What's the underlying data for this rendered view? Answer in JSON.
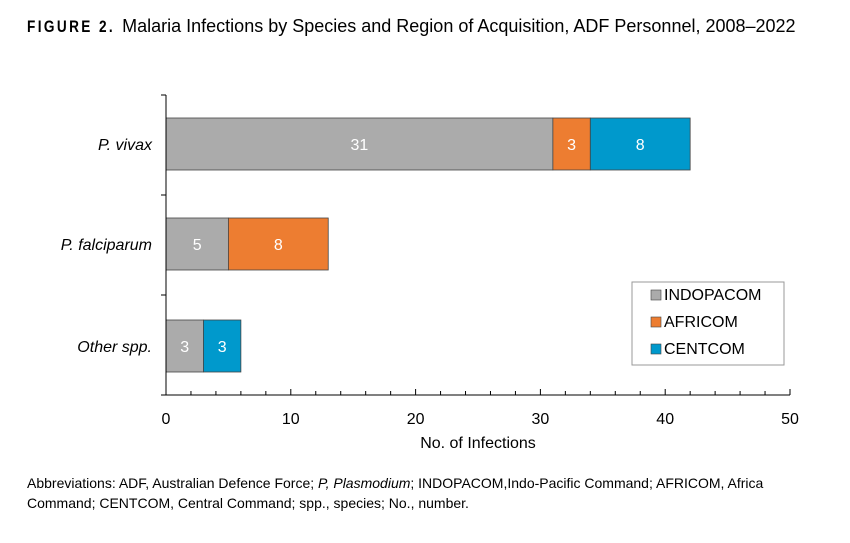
{
  "title": {
    "label": "FIGURE 2.",
    "text": "Malaria Infections by Species and Region of Acquisition, ADF Personnel, 2008–2022"
  },
  "chart_data": {
    "type": "bar",
    "orientation": "horizontal",
    "stacked": true,
    "categories": [
      "P. vivax",
      "P. falciparum",
      "Other spp."
    ],
    "series": [
      {
        "name": "INDOPACOM",
        "color": "#ababab",
        "values": [
          31,
          5,
          3
        ]
      },
      {
        "name": "AFRICOM",
        "color": "#ed7d31",
        "values": [
          3,
          8,
          0
        ]
      },
      {
        "name": "CENTCOM",
        "color": "#0099cc",
        "values": [
          8,
          0,
          3
        ]
      }
    ],
    "xlabel": "No. of Infections",
    "xlim": [
      0,
      50
    ],
    "xticks": [
      0,
      10,
      20,
      30,
      40,
      50
    ],
    "grid": false,
    "legend": "bottom-right"
  },
  "footnote": {
    "p1": "Abbreviations: ADF, Australian Defence Force; ",
    "italic": "P, Plasmodium",
    "p2": "; INDOPACOM,Indo-Pacific Command; AFRICOM, Africa Command; CENTCOM, Central Command; spp., species; No., number."
  }
}
